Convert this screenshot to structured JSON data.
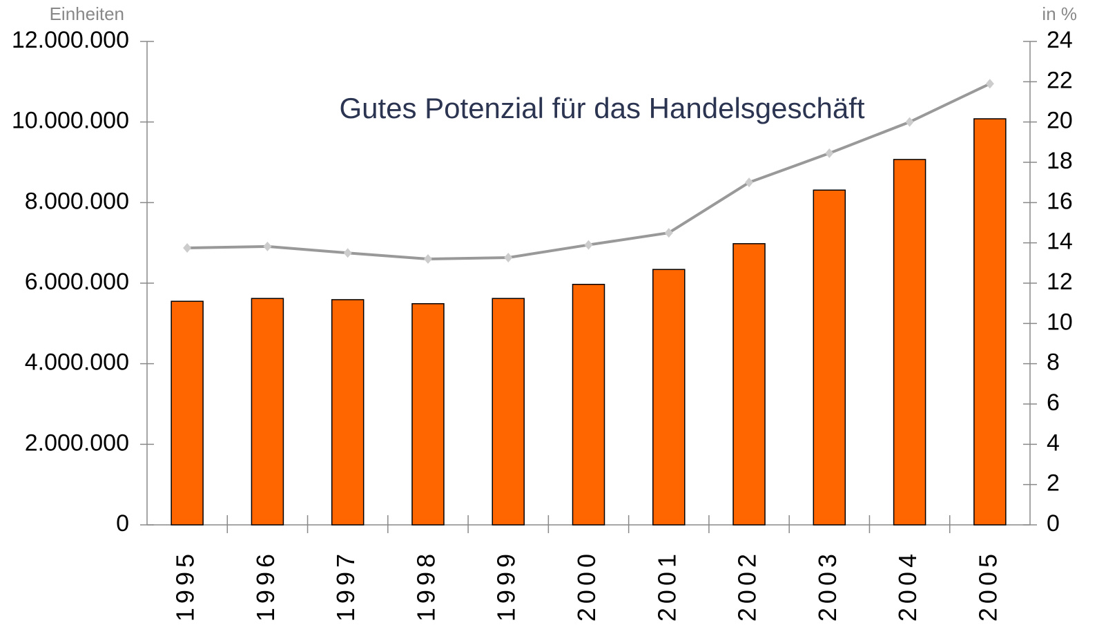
{
  "chart_data": {
    "type": "bar_line",
    "annotation": "Gutes Potenzial für das Handelsgeschäft",
    "y_label": "Einheiten",
    "y2_label": "in %",
    "categories": [
      "1995",
      "1996",
      "1997",
      "1998",
      "1999",
      "2000",
      "2001",
      "2002",
      "2003",
      "2004",
      "2005"
    ],
    "series": [
      {
        "type": "bar",
        "color": "#ff6600",
        "values": [
          5550000,
          5620000,
          5590000,
          5490000,
          5620000,
          5970000,
          6340000,
          6980000,
          8310000,
          9070000,
          10080000
        ]
      },
      {
        "type": "line",
        "axis": "y2",
        "color": "#999999",
        "values": [
          13.75,
          13.82,
          13.5,
          13.2,
          13.27,
          13.9,
          14.5,
          17.0,
          18.45,
          20.0,
          21.9
        ]
      }
    ],
    "ylim": [
      0,
      12000000
    ],
    "yticks": [
      0,
      {
        "value": 2000000,
        "label": "2.000.000"
      },
      {
        "value": 4000000,
        "label": "4.000.000"
      },
      {
        "value": 6000000,
        "label": "6.000.000"
      },
      {
        "value": 8000000,
        "label": "8.000.000"
      },
      {
        "value": 10000000,
        "label": "10.000.000"
      },
      {
        "value": 12000000,
        "label": "12.000.000"
      }
    ],
    "y2lim": [
      0,
      24
    ],
    "y2ticks": [
      0,
      2,
      4,
      6,
      8,
      10,
      12,
      14,
      16,
      18,
      20,
      22,
      24
    ]
  }
}
